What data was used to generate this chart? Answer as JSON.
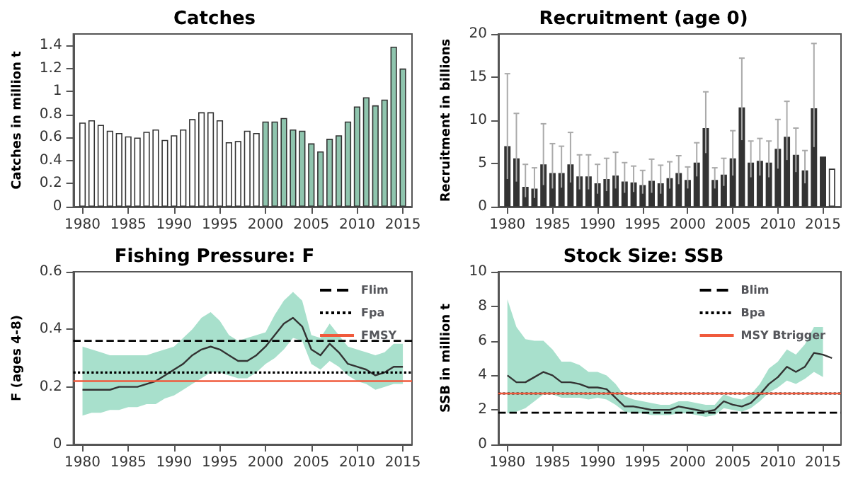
{
  "chart_data": [
    {
      "type": "bar",
      "title": "Catches",
      "ylabel": "Catches in million t",
      "xlim": [
        1979,
        2016
      ],
      "xticks": [
        1980,
        1985,
        1990,
        1995,
        2000,
        2005,
        2010,
        2015
      ],
      "ylim": [
        0,
        1.5
      ],
      "yticks": [
        0,
        0.2,
        0.4,
        0.6,
        0.8,
        1,
        1.2,
        1.4
      ],
      "x": [
        1980,
        1981,
        1982,
        1983,
        1984,
        1985,
        1986,
        1987,
        1988,
        1989,
        1990,
        1991,
        1992,
        1993,
        1994,
        1995,
        1996,
        1997,
        1998,
        1999,
        2000,
        2001,
        2002,
        2003,
        2004,
        2005,
        2006,
        2007,
        2008,
        2009,
        2010,
        2011,
        2012,
        2013,
        2014,
        2015
      ],
      "values": [
        0.73,
        0.75,
        0.71,
        0.66,
        0.64,
        0.61,
        0.6,
        0.65,
        0.67,
        0.58,
        0.62,
        0.67,
        0.76,
        0.82,
        0.82,
        0.75,
        0.56,
        0.57,
        0.66,
        0.64,
        0.74,
        0.74,
        0.77,
        0.67,
        0.66,
        0.55,
        0.48,
        0.59,
        0.62,
        0.74,
        0.87,
        0.95,
        0.88,
        0.93,
        1.39,
        1.2
      ],
      "colors": [
        "#ffffff",
        "#ffffff",
        "#ffffff",
        "#ffffff",
        "#ffffff",
        "#ffffff",
        "#ffffff",
        "#ffffff",
        "#ffffff",
        "#ffffff",
        "#ffffff",
        "#ffffff",
        "#ffffff",
        "#ffffff",
        "#ffffff",
        "#ffffff",
        "#ffffff",
        "#ffffff",
        "#ffffff",
        "#ffffff",
        "#8fc5ae",
        "#8fc5ae",
        "#8fc5ae",
        "#8fc5ae",
        "#8fc5ae",
        "#8fc5ae",
        "#8fc5ae",
        "#8fc5ae",
        "#8fc5ae",
        "#8fc5ae",
        "#8fc5ae",
        "#8fc5ae",
        "#8fc5ae",
        "#8fc5ae",
        "#8fc5ae",
        "#8fc5ae"
      ]
    },
    {
      "type": "bar",
      "title": "Recruitment (age 0)",
      "ylabel": "Recruitment in billions",
      "xlim": [
        1979,
        2017
      ],
      "xticks": [
        1980,
        1985,
        1990,
        1995,
        2000,
        2005,
        2010,
        2015
      ],
      "ylim": [
        0,
        20
      ],
      "yticks": [
        0,
        5,
        10,
        15,
        20
      ],
      "x": [
        1980,
        1981,
        1982,
        1983,
        1984,
        1985,
        1986,
        1987,
        1988,
        1989,
        1990,
        1991,
        1992,
        1993,
        1994,
        1995,
        1996,
        1997,
        1998,
        1999,
        2000,
        2001,
        2002,
        2003,
        2004,
        2005,
        2006,
        2007,
        2008,
        2009,
        2010,
        2011,
        2012,
        2013,
        2014,
        2015,
        2016
      ],
      "values": [
        7.0,
        5.6,
        2.3,
        2.1,
        4.9,
        3.9,
        3.9,
        4.9,
        3.5,
        3.5,
        2.7,
        3.2,
        3.6,
        2.9,
        2.8,
        2.5,
        3.0,
        2.7,
        3.3,
        3.9,
        3.1,
        5.1,
        9.1,
        3.1,
        3.7,
        5.6,
        11.5,
        5.1,
        5.3,
        5.1,
        6.7,
        8.1,
        6.0,
        4.2,
        11.4,
        5.8,
        4.4
      ],
      "errors": [
        [
          3.2,
          15.4
        ],
        [
          2.9,
          10.8
        ],
        [
          1.1,
          4.9
        ],
        [
          1.0,
          4.5
        ],
        [
          2.5,
          9.6
        ],
        [
          2.1,
          7.3
        ],
        [
          2.2,
          7.0
        ],
        [
          2.8,
          8.6
        ],
        [
          2.0,
          6.0
        ],
        [
          2.0,
          6.0
        ],
        [
          1.5,
          4.9
        ],
        [
          1.8,
          5.6
        ],
        [
          2.1,
          6.3
        ],
        [
          1.6,
          5.1
        ],
        [
          1.7,
          4.7
        ],
        [
          1.5,
          4.2
        ],
        [
          1.6,
          5.5
        ],
        [
          1.5,
          4.8
        ],
        [
          2.1,
          5.2
        ],
        [
          2.6,
          5.9
        ],
        [
          2.1,
          4.6
        ],
        [
          3.5,
          7.4
        ],
        [
          6.2,
          13.3
        ],
        [
          2.1,
          4.5
        ],
        [
          2.4,
          5.6
        ],
        [
          3.6,
          8.8
        ],
        [
          7.7,
          17.2
        ],
        [
          3.4,
          7.6
        ],
        [
          3.6,
          7.9
        ],
        [
          3.4,
          7.6
        ],
        [
          4.4,
          10.1
        ],
        [
          5.4,
          12.2
        ],
        [
          4.0,
          9.1
        ],
        [
          2.7,
          6.5
        ],
        [
          6.9,
          18.9
        ],
        null,
        null
      ],
      "colors": [
        "#333333",
        "#333333",
        "#333333",
        "#333333",
        "#333333",
        "#333333",
        "#333333",
        "#333333",
        "#333333",
        "#333333",
        "#333333",
        "#333333",
        "#333333",
        "#333333",
        "#333333",
        "#333333",
        "#333333",
        "#333333",
        "#333333",
        "#333333",
        "#333333",
        "#333333",
        "#333333",
        "#333333",
        "#333333",
        "#333333",
        "#333333",
        "#333333",
        "#333333",
        "#333333",
        "#333333",
        "#333333",
        "#333333",
        "#333333",
        "#333333",
        "#333333",
        "#ffffff"
      ]
    },
    {
      "type": "line",
      "title": "Fishing Pressure: F",
      "ylabel": "F (ages 4-8)",
      "xlim": [
        1979,
        2016
      ],
      "xticks": [
        1980,
        1985,
        1990,
        1995,
        2000,
        2005,
        2010,
        2015
      ],
      "ylim": [
        0,
        0.6
      ],
      "yticks": [
        0,
        0.2,
        0.4,
        0.6
      ],
      "marker": "none",
      "legend": "top right",
      "x": [
        1980,
        1981,
        1982,
        1983,
        1984,
        1985,
        1986,
        1987,
        1988,
        1989,
        1990,
        1991,
        1992,
        1993,
        1994,
        1995,
        1996,
        1997,
        1998,
        1999,
        2000,
        2001,
        2002,
        2003,
        2004,
        2005,
        2006,
        2007,
        2008,
        2009,
        2010,
        2011,
        2012,
        2013,
        2014,
        2015
      ],
      "series": [
        {
          "color": "#333333",
          "values": [
            0.19,
            0.19,
            0.19,
            0.19,
            0.2,
            0.2,
            0.2,
            0.21,
            0.22,
            0.24,
            0.26,
            0.28,
            0.31,
            0.33,
            0.34,
            0.33,
            0.31,
            0.29,
            0.29,
            0.31,
            0.34,
            0.38,
            0.42,
            0.44,
            0.41,
            0.33,
            0.31,
            0.35,
            0.32,
            0.28,
            0.27,
            0.26,
            0.24,
            0.25,
            0.27,
            0.27
          ],
          "lower": [
            0.1,
            0.11,
            0.11,
            0.12,
            0.12,
            0.13,
            0.13,
            0.14,
            0.14,
            0.16,
            0.17,
            0.19,
            0.21,
            0.23,
            0.25,
            0.25,
            0.24,
            0.23,
            0.23,
            0.25,
            0.28,
            0.3,
            0.33,
            0.37,
            0.36,
            0.28,
            0.26,
            0.29,
            0.27,
            0.24,
            0.22,
            0.21,
            0.19,
            0.2,
            0.21,
            0.21
          ],
          "upper": [
            0.34,
            0.33,
            0.32,
            0.31,
            0.31,
            0.31,
            0.31,
            0.31,
            0.32,
            0.33,
            0.34,
            0.37,
            0.4,
            0.44,
            0.46,
            0.43,
            0.38,
            0.36,
            0.37,
            0.38,
            0.39,
            0.45,
            0.5,
            0.53,
            0.5,
            0.38,
            0.37,
            0.42,
            0.38,
            0.34,
            0.33,
            0.32,
            0.31,
            0.32,
            0.35,
            0.35
          ]
        }
      ],
      "ref_lines": [
        {
          "axis": "y",
          "value": 0.36,
          "label": "Flim",
          "color": "#000000",
          "line_style": "dashed"
        },
        {
          "axis": "y",
          "value": 0.25,
          "label": "Fpa",
          "color": "#000000",
          "line_style": "dotted"
        },
        {
          "axis": "y",
          "value": 0.22,
          "label": "FMSY",
          "color": "#f05a3c",
          "line_style": "solid"
        }
      ]
    },
    {
      "type": "line",
      "title": "Stock Size: SSB",
      "ylabel": "SSB in million t",
      "xlim": [
        1979,
        2017
      ],
      "xticks": [
        1980,
        1985,
        1990,
        1995,
        2000,
        2005,
        2010,
        2015
      ],
      "ylim": [
        0,
        10
      ],
      "yticks": [
        0,
        2,
        4,
        6,
        8,
        10
      ],
      "marker": "none",
      "legend": "top right",
      "x": [
        1980,
        1981,
        1982,
        1983,
        1984,
        1985,
        1986,
        1987,
        1988,
        1989,
        1990,
        1991,
        1992,
        1993,
        1994,
        1995,
        1996,
        1997,
        1998,
        1999,
        2000,
        2001,
        2002,
        2003,
        2004,
        2005,
        2006,
        2007,
        2008,
        2009,
        2010,
        2011,
        2012,
        2013,
        2014,
        2015,
        2016
      ],
      "series": [
        {
          "color": "#333333",
          "values": [
            4.0,
            3.6,
            3.6,
            3.9,
            4.2,
            4.0,
            3.6,
            3.6,
            3.5,
            3.3,
            3.3,
            3.2,
            2.7,
            2.2,
            2.2,
            2.1,
            2.0,
            2.0,
            2.0,
            2.2,
            2.1,
            2.0,
            1.9,
            2.0,
            2.5,
            2.3,
            2.2,
            2.4,
            2.9,
            3.5,
            3.9,
            4.5,
            4.2,
            4.5,
            5.3,
            5.2,
            5.0
          ],
          "lower": [
            1.8,
            1.9,
            2.1,
            2.5,
            2.9,
            2.9,
            2.7,
            2.7,
            2.7,
            2.6,
            2.7,
            2.6,
            2.3,
            1.9,
            1.8,
            1.8,
            1.7,
            1.7,
            1.7,
            1.8,
            1.8,
            1.7,
            1.6,
            1.7,
            2.1,
            2.0,
            1.9,
            2.1,
            2.5,
            3.0,
            3.3,
            3.7,
            3.5,
            3.8,
            4.2,
            3.9,
            null
          ],
          "upper": [
            8.4,
            6.8,
            6.1,
            6.0,
            6.0,
            5.5,
            4.8,
            4.8,
            4.6,
            4.2,
            4.2,
            4.0,
            3.5,
            2.8,
            2.6,
            2.5,
            2.4,
            2.3,
            2.3,
            2.5,
            2.5,
            2.4,
            2.3,
            2.3,
            2.9,
            2.7,
            2.6,
            2.9,
            3.5,
            4.4,
            4.8,
            5.5,
            5.2,
            5.8,
            6.8,
            6.8,
            null
          ]
        }
      ],
      "ref_lines": [
        {
          "axis": "y",
          "value": 1.84,
          "label": "Blim",
          "color": "#000000",
          "line_style": "dashed"
        },
        {
          "axis": "y",
          "value": 2.95,
          "label": "Bpa",
          "color": "#000000",
          "line_style": "dotted"
        },
        {
          "axis": "y",
          "value": 2.95,
          "label": "MSY Btrigger",
          "color": "#f05a3c",
          "line_style": "solid"
        }
      ]
    }
  ]
}
